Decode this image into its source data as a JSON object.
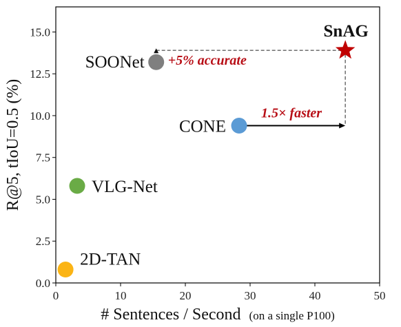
{
  "chart_data": {
    "type": "scatter",
    "xlabel": "# Sentences / Second",
    "xlabel_note": "(on a single P100)",
    "ylabel": "R@5, tIoU=0.5  (%)",
    "xlim": [
      0,
      50
    ],
    "ylim": [
      0,
      16.5
    ],
    "xticks": [
      0,
      10,
      20,
      30,
      40,
      50
    ],
    "yticks": [
      0.0,
      2.5,
      5.0,
      7.5,
      10.0,
      12.5,
      15.0
    ],
    "ytick_labels": [
      "0.0",
      "2.5",
      "5.0",
      "7.5",
      "10.0",
      "12.5",
      "15.0"
    ],
    "grid": false,
    "points": [
      {
        "label": "2D-TAN",
        "x": 1.5,
        "y": 0.8,
        "color": "#fbb415",
        "marker": "circle"
      },
      {
        "label": "VLG-Net",
        "x": 3.3,
        "y": 5.8,
        "color": "#6aab46",
        "marker": "circle"
      },
      {
        "label": "SOONet",
        "x": 15.5,
        "y": 13.2,
        "color": "#7f7f7f",
        "marker": "circle"
      },
      {
        "label": "CONE",
        "x": 28.3,
        "y": 9.4,
        "color": "#5b9bd5",
        "marker": "circle"
      },
      {
        "label": "SnAG",
        "x": 44.7,
        "y": 13.9,
        "color": "#c00000",
        "marker": "star"
      }
    ],
    "annotations": [
      {
        "text": "+5% accurate",
        "color": "#b80f17"
      },
      {
        "text": "1.5× faster",
        "color": "#b80f17"
      }
    ]
  }
}
